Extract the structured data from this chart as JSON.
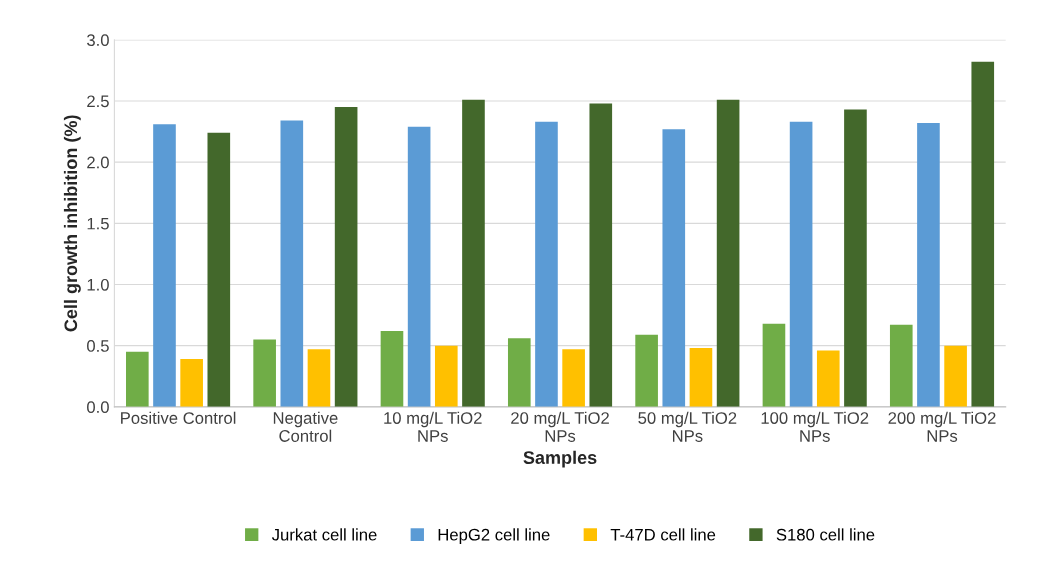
{
  "chart_data": {
    "type": "bar",
    "xlabel": "Samples",
    "ylabel": "Cell growth inhibition (%)",
    "categories": [
      "Positive Control",
      "Negative\nControl",
      "10 mg/L TiO2\nNPs",
      "20 mg/L TiO2\nNPs",
      "50 mg/L TiO2\nNPs",
      "100 mg/L TiO2\nNPs",
      "200 mg/L TiO2\nNPs"
    ],
    "series": [
      {
        "name": "Jurkat cell line",
        "color": "#70ad47",
        "values": [
          0.45,
          0.55,
          0.62,
          0.56,
          0.59,
          0.68,
          0.67
        ]
      },
      {
        "name": "HepG2 cell line",
        "color": "#5b9bd5",
        "values": [
          2.31,
          2.34,
          2.29,
          2.33,
          2.27,
          2.33,
          2.32
        ]
      },
      {
        "name": "T-47D cell line",
        "color": "#ffc000",
        "values": [
          0.39,
          0.47,
          0.5,
          0.47,
          0.48,
          0.46,
          0.5
        ]
      },
      {
        "name": "S180 cell line",
        "color": "#43682b",
        "values": [
          2.24,
          2.45,
          2.51,
          2.48,
          2.51,
          2.43,
          2.82
        ]
      }
    ],
    "ylim": [
      0,
      3.0
    ],
    "yticks": [
      {
        "value": 0,
        "label": "0.0"
      },
      {
        "value": 0.5,
        "label": "0.5"
      },
      {
        "value": 1.0,
        "label": "1.0"
      },
      {
        "value": 1.5,
        "label": "1.5"
      },
      {
        "value": 2.0,
        "label": "2.0"
      },
      {
        "value": 2.5,
        "label": "2.5"
      },
      {
        "value": 3.0,
        "label": "3.0"
      }
    ],
    "grid": "y",
    "legend": "bottom"
  }
}
